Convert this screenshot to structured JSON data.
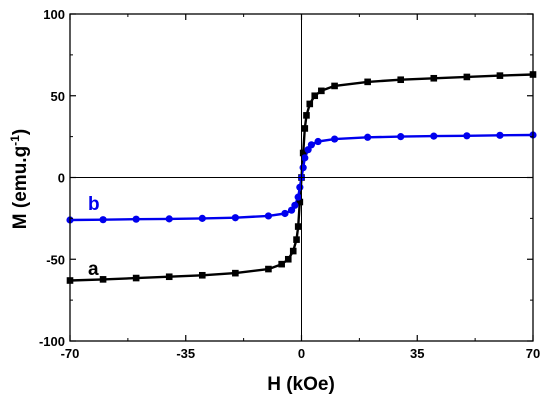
{
  "chart_data": {
    "type": "scatter",
    "title": "",
    "xlabel": "H (kOe)",
    "ylabel": "M (emu.g",
    "ylabel_superscript": "-1",
    "ylabel_suffix": ")",
    "xlim": [
      -70,
      70
    ],
    "ylim": [
      -100,
      100
    ],
    "xticks": [
      -70,
      -35,
      0,
      35,
      70
    ],
    "yticks": [
      -100,
      -50,
      0,
      50,
      100
    ],
    "grid": false,
    "legend": "none",
    "zero_lines": true,
    "series": [
      {
        "name": "a",
        "color": "#000000",
        "marker": "square",
        "x": [
          -70,
          -60,
          -50,
          -40,
          -30,
          -20,
          -10,
          -6,
          -4,
          -2.5,
          -1.5,
          -1,
          -0.5,
          0,
          0.5,
          1,
          1.5,
          2.5,
          4,
          6,
          10,
          20,
          30,
          40,
          50,
          60,
          70
        ],
        "y": [
          -63,
          -62.3,
          -61.5,
          -60.7,
          -59.8,
          -58.5,
          -56,
          -53,
          -50,
          -45,
          -38,
          -30,
          -15,
          0,
          15,
          30,
          38,
          45,
          50,
          53,
          56,
          58.5,
          59.8,
          60.7,
          61.5,
          62.3,
          63
        ]
      },
      {
        "name": "b",
        "color": "#0000ee",
        "marker": "circle",
        "x": [
          -70,
          -60,
          -50,
          -40,
          -30,
          -20,
          -10,
          -5,
          -3,
          -2,
          -1,
          -0.5,
          0,
          0.5,
          1,
          2,
          3,
          5,
          10,
          20,
          30,
          40,
          50,
          60,
          70
        ],
        "y": [
          -26,
          -25.8,
          -25.5,
          -25.3,
          -25,
          -24.6,
          -23.5,
          -22,
          -20,
          -17,
          -12,
          -6,
          0,
          6,
          12,
          17,
          20,
          22,
          23.5,
          24.6,
          25,
          25.3,
          25.5,
          25.8,
          26
        ]
      }
    ]
  }
}
